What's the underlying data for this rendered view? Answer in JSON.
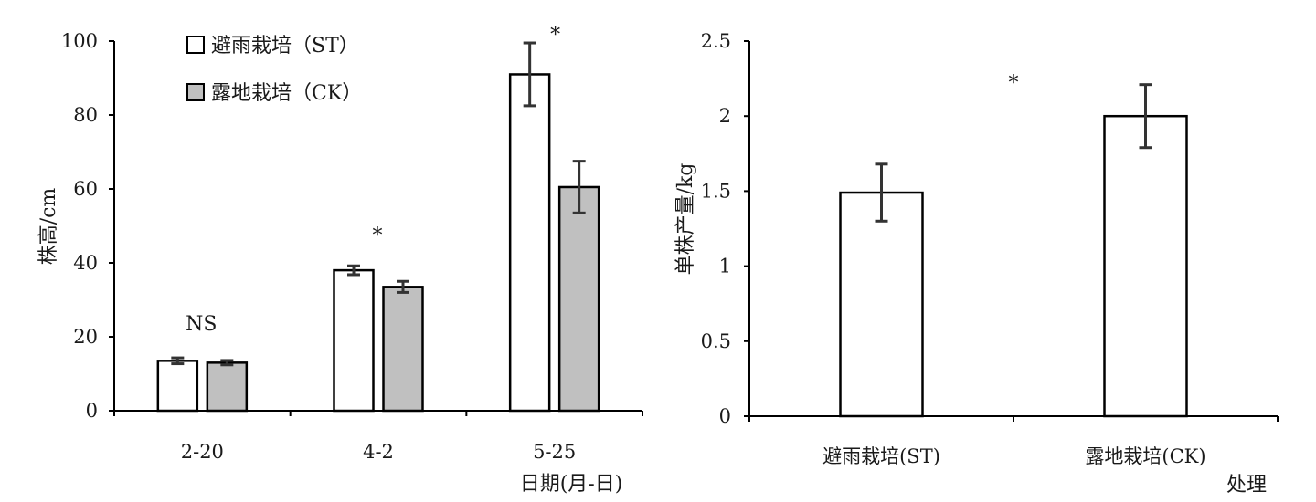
{
  "chart_data": [
    {
      "type": "bar",
      "categories": [
        "2-20",
        "4-2",
        "5-25"
      ],
      "series": [
        {
          "name": "避雨栽培（ST）",
          "values": [
            13.5,
            38,
            91
          ],
          "error": [
            0.8,
            1.2,
            8.5
          ],
          "color": "#ffffff"
        },
        {
          "name": "露地栽培（CK）",
          "values": [
            13,
            33.5,
            60.5
          ],
          "error": [
            0.6,
            1.5,
            7
          ],
          "color": "#c0c0c0"
        }
      ],
      "significance": [
        "NS",
        "*",
        "*"
      ],
      "xlabel": "日期(月-日)",
      "ylabel": "株高/cm",
      "ylim": [
        0,
        100
      ],
      "yticks": [
        "0",
        "20",
        "40",
        "60",
        "80",
        "100"
      ],
      "grid": false,
      "legend_position": "top-left"
    },
    {
      "type": "bar",
      "categories": [
        "避雨栽培(ST)",
        "露地栽培(CK)"
      ],
      "values": [
        1.49,
        2.0
      ],
      "error": [
        0.19,
        0.21
      ],
      "significance": "*",
      "xlabel": "处理",
      "ylabel": "单株产量/kg",
      "ylim": [
        0,
        2.5
      ],
      "yticks": [
        "0",
        "0.5",
        "1",
        "1.5",
        "2",
        "2.5"
      ],
      "grid": false
    }
  ]
}
